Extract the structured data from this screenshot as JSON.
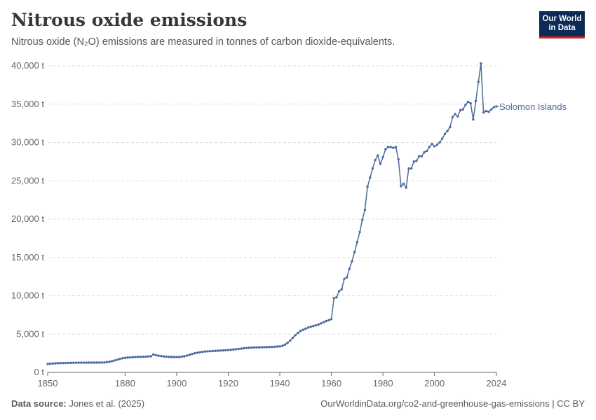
{
  "header": {
    "title": "Nitrous oxide emissions",
    "subtitle": "Nitrous oxide (N₂O) emissions are measured in tonnes of carbon dioxide-equivalents.",
    "logo_line1": "Our World",
    "logo_line2": "in Data"
  },
  "footer": {
    "source_label": "Data source:",
    "source_value": "Jones et al. (2025)",
    "url": "OurWorldinData.org/co2-and-greenhouse-gas-emissions | CC BY"
  },
  "colors": {
    "series": "#4c6a9c",
    "grid": "#dddddd",
    "axis": "#666666",
    "logo_bg": "#0d2b57",
    "logo_accent": "#ce261e"
  },
  "chart_data": {
    "type": "line",
    "xlim": [
      1850,
      2024
    ],
    "ylim": [
      0,
      40000
    ],
    "x_ticks": [
      {
        "value": 1850,
        "label": "1850"
      },
      {
        "value": 1880,
        "label": "1880"
      },
      {
        "value": 1900,
        "label": "1900"
      },
      {
        "value": 1920,
        "label": "1920"
      },
      {
        "value": 1940,
        "label": "1940"
      },
      {
        "value": 1960,
        "label": "1960"
      },
      {
        "value": 1980,
        "label": "1980"
      },
      {
        "value": 2000,
        "label": "2000"
      },
      {
        "value": 2024,
        "label": "2024"
      }
    ],
    "y_ticks": [
      {
        "value": 0,
        "label": "0 t"
      },
      {
        "value": 5000,
        "label": "5,000 t"
      },
      {
        "value": 10000,
        "label": "10,000 t"
      },
      {
        "value": 15000,
        "label": "15,000 t"
      },
      {
        "value": 20000,
        "label": "20,000 t"
      },
      {
        "value": 25000,
        "label": "25,000 t"
      },
      {
        "value": 30000,
        "label": "30,000 t"
      },
      {
        "value": 35000,
        "label": "35,000 t"
      },
      {
        "value": 40000,
        "label": "40,000 t"
      }
    ],
    "grid": true,
    "series": [
      {
        "name": "Solomon Islands",
        "x": [
          1850,
          1851,
          1852,
          1853,
          1854,
          1855,
          1856,
          1857,
          1858,
          1859,
          1860,
          1861,
          1862,
          1863,
          1864,
          1865,
          1866,
          1867,
          1868,
          1869,
          1870,
          1871,
          1872,
          1873,
          1874,
          1875,
          1876,
          1877,
          1878,
          1879,
          1880,
          1881,
          1882,
          1883,
          1884,
          1885,
          1886,
          1887,
          1888,
          1889,
          1890,
          1891,
          1892,
          1893,
          1894,
          1895,
          1896,
          1897,
          1898,
          1899,
          1900,
          1901,
          1902,
          1903,
          1904,
          1905,
          1906,
          1907,
          1908,
          1909,
          1910,
          1911,
          1912,
          1913,
          1914,
          1915,
          1916,
          1917,
          1918,
          1919,
          1920,
          1921,
          1922,
          1923,
          1924,
          1925,
          1926,
          1927,
          1928,
          1929,
          1930,
          1931,
          1932,
          1933,
          1934,
          1935,
          1936,
          1937,
          1938,
          1939,
          1940,
          1941,
          1942,
          1943,
          1944,
          1945,
          1946,
          1947,
          1948,
          1949,
          1950,
          1951,
          1952,
          1953,
          1954,
          1955,
          1956,
          1957,
          1958,
          1959,
          1960,
          1961,
          1962,
          1963,
          1964,
          1965,
          1966,
          1967,
          1968,
          1969,
          1970,
          1971,
          1972,
          1973,
          1974,
          1975,
          1976,
          1977,
          1978,
          1979,
          1980,
          1981,
          1982,
          1983,
          1984,
          1985,
          1986,
          1987,
          1988,
          1989,
          1990,
          1991,
          1992,
          1993,
          1994,
          1995,
          1996,
          1997,
          1998,
          1999,
          2000,
          2001,
          2002,
          2003,
          2004,
          2005,
          2006,
          2007,
          2008,
          2009,
          2010,
          2011,
          2012,
          2013,
          2014,
          2015,
          2016,
          2017,
          2018,
          2019,
          2020,
          2021,
          2022,
          2023,
          2024
        ],
        "y": [
          1100,
          1130,
          1160,
          1180,
          1200,
          1210,
          1220,
          1230,
          1240,
          1250,
          1260,
          1260,
          1270,
          1270,
          1270,
          1270,
          1280,
          1280,
          1280,
          1280,
          1280,
          1290,
          1300,
          1340,
          1400,
          1470,
          1560,
          1650,
          1750,
          1840,
          1900,
          1940,
          1960,
          1980,
          2000,
          2020,
          2030,
          2040,
          2050,
          2080,
          2100,
          2350,
          2250,
          2180,
          2130,
          2080,
          2050,
          2030,
          2010,
          2000,
          2000,
          2010,
          2050,
          2100,
          2200,
          2300,
          2400,
          2500,
          2560,
          2620,
          2680,
          2720,
          2750,
          2770,
          2790,
          2810,
          2830,
          2850,
          2870,
          2890,
          2920,
          2950,
          2980,
          3020,
          3060,
          3100,
          3150,
          3180,
          3210,
          3230,
          3250,
          3260,
          3270,
          3280,
          3290,
          3300,
          3310,
          3320,
          3340,
          3370,
          3400,
          3460,
          3620,
          3850,
          4150,
          4500,
          4850,
          5150,
          5400,
          5550,
          5700,
          5850,
          5950,
          6050,
          6150,
          6250,
          6400,
          6550,
          6700,
          6800,
          6950,
          9700,
          9800,
          10600,
          10850,
          12200,
          12400,
          13500,
          14500,
          15700,
          17000,
          18300,
          19900,
          21200,
          24200,
          25400,
          26600,
          27700,
          28300,
          27200,
          28100,
          29100,
          29400,
          29400,
          29300,
          29400,
          27800,
          24300,
          24600,
          24100,
          26600,
          26600,
          27500,
          27600,
          28200,
          28200,
          28700,
          28900,
          29400,
          29800,
          29500,
          29700,
          30000,
          30500,
          31100,
          31500,
          32000,
          33300,
          33700,
          33400,
          34200,
          34300,
          34900,
          35300,
          35100,
          33000,
          35400,
          37900,
          40300,
          33900,
          34100,
          34000,
          34300,
          34600,
          34700
        ]
      }
    ]
  }
}
